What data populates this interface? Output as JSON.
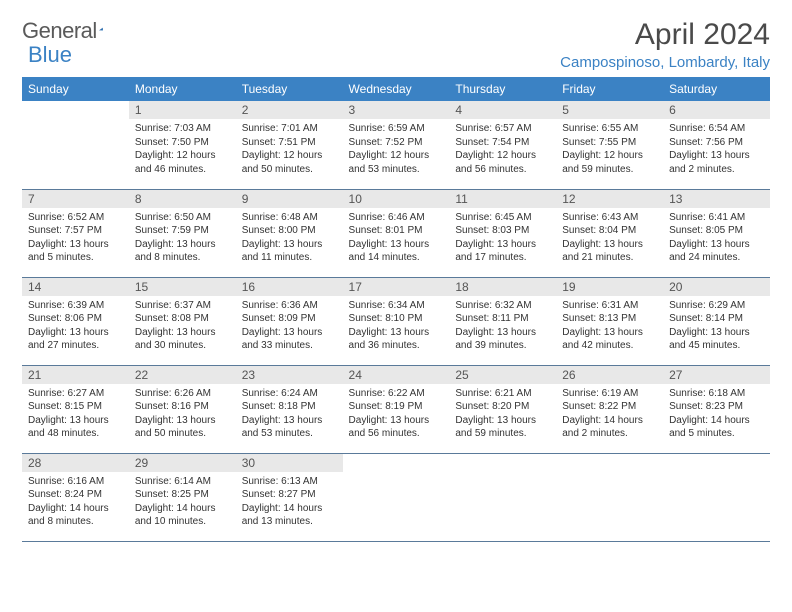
{
  "brand": {
    "name1": "General",
    "name2": "Blue"
  },
  "title": "April 2024",
  "location": "Campospinoso, Lombardy, Italy",
  "colors": {
    "header_bg": "#3b82c4",
    "header_fg": "#ffffff",
    "daynum_bg": "#e8e8e8",
    "text": "#333333",
    "rule": "#5a7a9a"
  },
  "weekday_labels": [
    "Sunday",
    "Monday",
    "Tuesday",
    "Wednesday",
    "Thursday",
    "Friday",
    "Saturday"
  ],
  "weeks": [
    [
      {
        "num": "",
        "lines": []
      },
      {
        "num": "1",
        "lines": [
          "Sunrise: 7:03 AM",
          "Sunset: 7:50 PM",
          "Daylight: 12 hours and 46 minutes."
        ]
      },
      {
        "num": "2",
        "lines": [
          "Sunrise: 7:01 AM",
          "Sunset: 7:51 PM",
          "Daylight: 12 hours and 50 minutes."
        ]
      },
      {
        "num": "3",
        "lines": [
          "Sunrise: 6:59 AM",
          "Sunset: 7:52 PM",
          "Daylight: 12 hours and 53 minutes."
        ]
      },
      {
        "num": "4",
        "lines": [
          "Sunrise: 6:57 AM",
          "Sunset: 7:54 PM",
          "Daylight: 12 hours and 56 minutes."
        ]
      },
      {
        "num": "5",
        "lines": [
          "Sunrise: 6:55 AM",
          "Sunset: 7:55 PM",
          "Daylight: 12 hours and 59 minutes."
        ]
      },
      {
        "num": "6",
        "lines": [
          "Sunrise: 6:54 AM",
          "Sunset: 7:56 PM",
          "Daylight: 13 hours and 2 minutes."
        ]
      }
    ],
    [
      {
        "num": "7",
        "lines": [
          "Sunrise: 6:52 AM",
          "Sunset: 7:57 PM",
          "Daylight: 13 hours and 5 minutes."
        ]
      },
      {
        "num": "8",
        "lines": [
          "Sunrise: 6:50 AM",
          "Sunset: 7:59 PM",
          "Daylight: 13 hours and 8 minutes."
        ]
      },
      {
        "num": "9",
        "lines": [
          "Sunrise: 6:48 AM",
          "Sunset: 8:00 PM",
          "Daylight: 13 hours and 11 minutes."
        ]
      },
      {
        "num": "10",
        "lines": [
          "Sunrise: 6:46 AM",
          "Sunset: 8:01 PM",
          "Daylight: 13 hours and 14 minutes."
        ]
      },
      {
        "num": "11",
        "lines": [
          "Sunrise: 6:45 AM",
          "Sunset: 8:03 PM",
          "Daylight: 13 hours and 17 minutes."
        ]
      },
      {
        "num": "12",
        "lines": [
          "Sunrise: 6:43 AM",
          "Sunset: 8:04 PM",
          "Daylight: 13 hours and 21 minutes."
        ]
      },
      {
        "num": "13",
        "lines": [
          "Sunrise: 6:41 AM",
          "Sunset: 8:05 PM",
          "Daylight: 13 hours and 24 minutes."
        ]
      }
    ],
    [
      {
        "num": "14",
        "lines": [
          "Sunrise: 6:39 AM",
          "Sunset: 8:06 PM",
          "Daylight: 13 hours and 27 minutes."
        ]
      },
      {
        "num": "15",
        "lines": [
          "Sunrise: 6:37 AM",
          "Sunset: 8:08 PM",
          "Daylight: 13 hours and 30 minutes."
        ]
      },
      {
        "num": "16",
        "lines": [
          "Sunrise: 6:36 AM",
          "Sunset: 8:09 PM",
          "Daylight: 13 hours and 33 minutes."
        ]
      },
      {
        "num": "17",
        "lines": [
          "Sunrise: 6:34 AM",
          "Sunset: 8:10 PM",
          "Daylight: 13 hours and 36 minutes."
        ]
      },
      {
        "num": "18",
        "lines": [
          "Sunrise: 6:32 AM",
          "Sunset: 8:11 PM",
          "Daylight: 13 hours and 39 minutes."
        ]
      },
      {
        "num": "19",
        "lines": [
          "Sunrise: 6:31 AM",
          "Sunset: 8:13 PM",
          "Daylight: 13 hours and 42 minutes."
        ]
      },
      {
        "num": "20",
        "lines": [
          "Sunrise: 6:29 AM",
          "Sunset: 8:14 PM",
          "Daylight: 13 hours and 45 minutes."
        ]
      }
    ],
    [
      {
        "num": "21",
        "lines": [
          "Sunrise: 6:27 AM",
          "Sunset: 8:15 PM",
          "Daylight: 13 hours and 48 minutes."
        ]
      },
      {
        "num": "22",
        "lines": [
          "Sunrise: 6:26 AM",
          "Sunset: 8:16 PM",
          "Daylight: 13 hours and 50 minutes."
        ]
      },
      {
        "num": "23",
        "lines": [
          "Sunrise: 6:24 AM",
          "Sunset: 8:18 PM",
          "Daylight: 13 hours and 53 minutes."
        ]
      },
      {
        "num": "24",
        "lines": [
          "Sunrise: 6:22 AM",
          "Sunset: 8:19 PM",
          "Daylight: 13 hours and 56 minutes."
        ]
      },
      {
        "num": "25",
        "lines": [
          "Sunrise: 6:21 AM",
          "Sunset: 8:20 PM",
          "Daylight: 13 hours and 59 minutes."
        ]
      },
      {
        "num": "26",
        "lines": [
          "Sunrise: 6:19 AM",
          "Sunset: 8:22 PM",
          "Daylight: 14 hours and 2 minutes."
        ]
      },
      {
        "num": "27",
        "lines": [
          "Sunrise: 6:18 AM",
          "Sunset: 8:23 PM",
          "Daylight: 14 hours and 5 minutes."
        ]
      }
    ],
    [
      {
        "num": "28",
        "lines": [
          "Sunrise: 6:16 AM",
          "Sunset: 8:24 PM",
          "Daylight: 14 hours and 8 minutes."
        ]
      },
      {
        "num": "29",
        "lines": [
          "Sunrise: 6:14 AM",
          "Sunset: 8:25 PM",
          "Daylight: 14 hours and 10 minutes."
        ]
      },
      {
        "num": "30",
        "lines": [
          "Sunrise: 6:13 AM",
          "Sunset: 8:27 PM",
          "Daylight: 14 hours and 13 minutes."
        ]
      },
      {
        "num": "",
        "lines": []
      },
      {
        "num": "",
        "lines": []
      },
      {
        "num": "",
        "lines": []
      },
      {
        "num": "",
        "lines": []
      }
    ]
  ]
}
